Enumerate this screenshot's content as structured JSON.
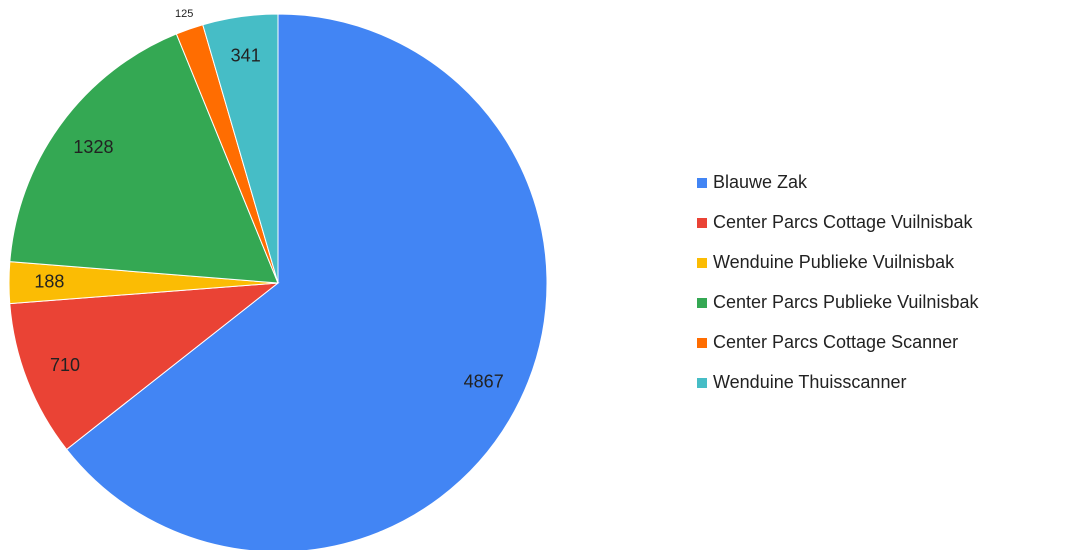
{
  "chart_data": {
    "type": "pie",
    "categories": [
      "Blauwe Zak",
      "Center Parcs Cottage Vuilnisbak",
      "Wenduine Publieke Vuilnisbak",
      "Center Parcs Publieke Vuilnisbak",
      "Center Parcs Cottage Scanner",
      "Wenduine Thuisscanner"
    ],
    "values": [
      4867,
      710,
      188,
      1328,
      125,
      341
    ],
    "colors": [
      "#4285f4",
      "#ea4335",
      "#fbbc04",
      "#34a853",
      "#ff6d01",
      "#46bdc6"
    ],
    "legend": "right"
  }
}
